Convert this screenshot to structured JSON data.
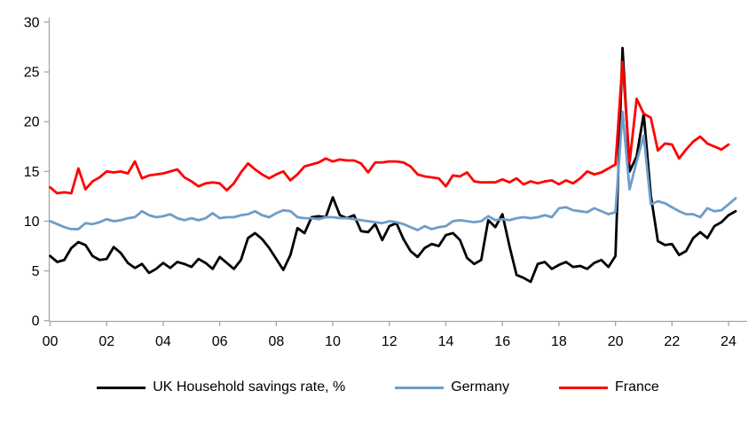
{
  "chart_data": {
    "type": "line",
    "title": "",
    "x_unit": "quarterly",
    "x_start": "2000-Q1",
    "x_end": "2024-Q2",
    "xtick_labels": [
      "00",
      "02",
      "04",
      "06",
      "08",
      "10",
      "12",
      "14",
      "16",
      "18",
      "20",
      "22",
      "24"
    ],
    "xtick_every_n_points": 8,
    "yticks": [
      0,
      5,
      10,
      15,
      20,
      25,
      30
    ],
    "ylim": [
      0,
      30
    ],
    "grid": false,
    "legend_position": "bottom",
    "axis_color": "#A6A6A6",
    "tick_label_color": "#000000",
    "series": [
      {
        "name": "UK Household savings rate, %",
        "color": "#000000",
        "values": [
          6.5,
          5.9,
          6.1,
          7.3,
          7.9,
          7.6,
          6.5,
          6.1,
          6.2,
          7.4,
          6.8,
          5.8,
          5.3,
          5.7,
          4.8,
          5.2,
          5.8,
          5.3,
          5.9,
          5.7,
          5.4,
          6.2,
          5.8,
          5.2,
          6.4,
          5.8,
          5.2,
          6.1,
          8.3,
          8.8,
          8.2,
          7.3,
          6.2,
          5.1,
          6.6,
          9.3,
          8.8,
          10.4,
          10.5,
          10.4,
          12.4,
          10.6,
          10.3,
          10.6,
          9.0,
          8.9,
          9.7,
          8.1,
          9.5,
          9.8,
          8.2,
          7.0,
          6.4,
          7.3,
          7.7,
          7.5,
          8.6,
          8.8,
          8.1,
          6.3,
          5.7,
          6.1,
          10.1,
          9.4,
          10.7,
          7.5,
          4.6,
          4.3,
          3.9,
          5.7,
          5.9,
          5.2,
          5.6,
          5.9,
          5.4,
          5.5,
          5.2,
          5.8,
          6.1,
          5.4,
          6.5,
          27.4,
          15.0,
          16.5,
          20.8,
          12.6,
          8.0,
          7.6,
          7.7,
          6.6,
          7.0,
          8.3,
          8.9,
          8.3,
          9.5,
          9.9,
          10.6,
          11.0
        ]
      },
      {
        "name": "Germany",
        "color": "#6D9DCA",
        "values": [
          10.0,
          9.7,
          9.4,
          9.2,
          9.2,
          9.8,
          9.7,
          9.9,
          10.2,
          10.0,
          10.1,
          10.3,
          10.4,
          11.0,
          10.6,
          10.4,
          10.5,
          10.7,
          10.3,
          10.1,
          10.3,
          10.1,
          10.3,
          10.8,
          10.3,
          10.4,
          10.4,
          10.6,
          10.7,
          11.0,
          10.6,
          10.4,
          10.8,
          11.1,
          11.0,
          10.4,
          10.3,
          10.3,
          10.2,
          10.4,
          10.4,
          10.3,
          10.3,
          10.2,
          10.1,
          10.0,
          9.9,
          9.8,
          10.0,
          9.9,
          9.7,
          9.4,
          9.1,
          9.5,
          9.2,
          9.4,
          9.5,
          10.0,
          10.1,
          10.0,
          9.9,
          10.0,
          10.5,
          10.1,
          10.2,
          10.1,
          10.3,
          10.4,
          10.3,
          10.4,
          10.6,
          10.4,
          11.3,
          11.4,
          11.1,
          11.0,
          10.9,
          11.3,
          11.0,
          10.7,
          10.9,
          21.0,
          13.2,
          16.0,
          18.6,
          11.7,
          12.0,
          11.8,
          11.4,
          11.0,
          10.7,
          10.7,
          10.4,
          11.3,
          11.0,
          11.1,
          11.7,
          12.3
        ]
      },
      {
        "name": "France",
        "color": "#FF0000",
        "values": [
          13.4,
          12.8,
          12.9,
          12.8,
          15.3,
          13.2,
          14.0,
          14.4,
          15.0,
          14.9,
          15.0,
          14.8,
          16.0,
          14.3,
          14.6,
          14.7,
          14.8,
          15.0,
          15.2,
          14.4,
          14.0,
          13.5,
          13.8,
          13.9,
          13.8,
          13.1,
          13.8,
          14.9,
          15.8,
          15.2,
          14.7,
          14.3,
          14.7,
          15.0,
          14.1,
          14.7,
          15.5,
          15.7,
          15.9,
          16.3,
          16.0,
          16.2,
          16.1,
          16.1,
          15.8,
          14.9,
          15.9,
          15.9,
          16.0,
          16.0,
          15.9,
          15.5,
          14.7,
          14.5,
          14.4,
          14.3,
          13.5,
          14.6,
          14.5,
          14.9,
          14.0,
          13.9,
          13.9,
          13.9,
          14.2,
          13.9,
          14.3,
          13.7,
          14.0,
          13.8,
          14.0,
          14.1,
          13.7,
          14.1,
          13.8,
          14.3,
          15.0,
          14.7,
          14.9,
          15.3,
          15.7,
          26.0,
          15.9,
          22.3,
          20.8,
          20.4,
          17.1,
          17.8,
          17.7,
          16.3,
          17.2,
          18.0,
          18.5,
          17.8,
          17.5,
          17.2,
          17.7,
          null
        ]
      }
    ]
  }
}
